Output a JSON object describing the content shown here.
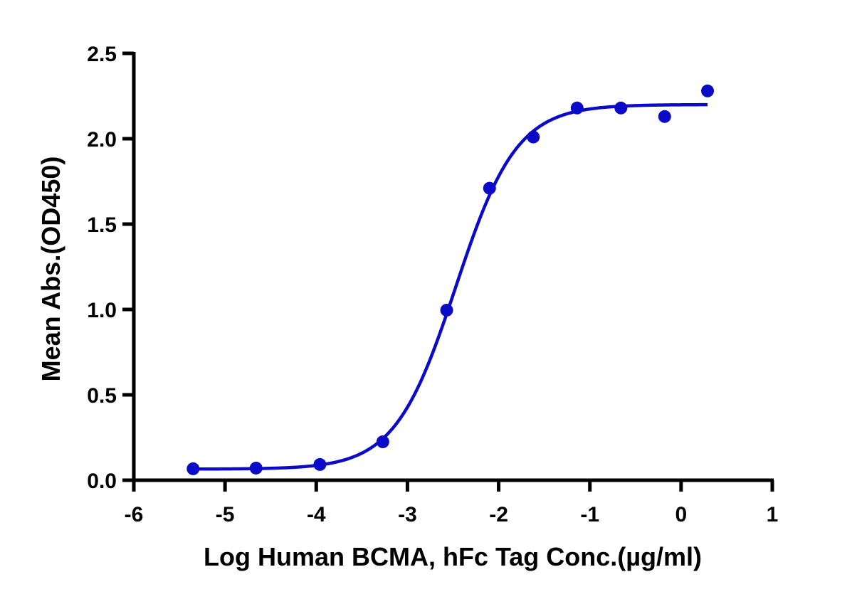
{
  "chart_data": {
    "type": "scatter",
    "title": "",
    "xlabel": "Log Human BCMA, hFc Tag Conc.(µg/ml)",
    "ylabel": "Mean Abs.(OD450)",
    "xlim": [
      -6,
      1
    ],
    "ylim": [
      0,
      2.5
    ],
    "x_ticks": [
      -6,
      -5,
      -4,
      -3,
      -2,
      -1,
      0,
      1
    ],
    "x_tick_labels": [
      "-6",
      "-5",
      "-4",
      "-3",
      "-2",
      "-1",
      "0",
      "1"
    ],
    "y_ticks": [
      0.0,
      0.5,
      1.0,
      1.5,
      2.0,
      2.5
    ],
    "y_tick_labels": [
      "0.0",
      "0.5",
      "1.0",
      "1.5",
      "2.0",
      "2.5"
    ],
    "grid": false,
    "legend": null,
    "series": [
      {
        "name": "Mean Abs.",
        "color": "#0a0ac8",
        "marker": "circle",
        "x": [
          -5.35,
          -4.66,
          -3.96,
          -3.27,
          -2.57,
          -2.1,
          -1.62,
          -1.14,
          -0.66,
          -0.18,
          0.29
        ],
        "y": [
          0.067,
          0.071,
          0.092,
          0.225,
          0.996,
          1.71,
          2.01,
          2.18,
          2.18,
          2.13,
          2.28
        ]
      }
    ],
    "fit_curve": {
      "type": "4PL sigmoid",
      "color": "#0a0ac8",
      "bottom": 0.065,
      "top": 2.2,
      "log_ec50": -2.47,
      "hill_slope": 1.3,
      "x_range": [
        -5.35,
        0.29
      ]
    }
  }
}
